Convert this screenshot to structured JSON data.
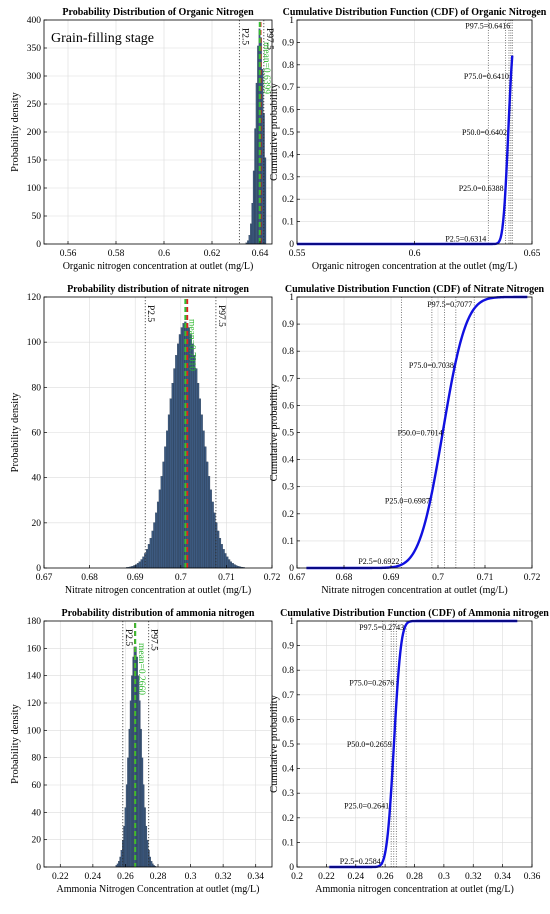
{
  "chart_data": [
    {
      "id": "p1",
      "type": "bar",
      "subtype": "histogram",
      "title": "Probability Distribution of Organic Nitrogen",
      "annotation": "Grain-filling stage",
      "xlabel": "Organic nitrogen concentration at outlet  (mg/L)",
      "ylabel": "Probability density",
      "xlim": [
        0.55,
        0.645
      ],
      "ylim": [
        0,
        400
      ],
      "xticks": [
        0.56,
        0.58,
        0.6,
        0.62,
        0.64
      ],
      "xtick_labels": [
        "0.56",
        "0.58",
        "0.6",
        "0.62",
        "0.64"
      ],
      "yticks": [
        0,
        50,
        100,
        150,
        200,
        250,
        300,
        350,
        400
      ],
      "ytick_labels": [
        "0",
        "50",
        "100",
        "150",
        "200",
        "250",
        "300",
        "350",
        "400"
      ],
      "grid": true,
      "bar_color": "#3d5a80",
      "hist": {
        "mean": 0.6399,
        "sd": 0.0017,
        "peak": 385,
        "bin_width": 0.0006,
        "range": [
          0.6305,
          0.6425
        ]
      },
      "vlines": [
        {
          "label": "P2.5",
          "x": 0.6314,
          "style": "dotted"
        },
        {
          "label": "P97.5",
          "x": 0.6416,
          "style": "dotted"
        }
      ],
      "mean_line": {
        "label": "mean=0.6399",
        "x": 0.6399
      },
      "median_line": {
        "x": 0.6402
      }
    },
    {
      "id": "p2",
      "type": "line",
      "subtype": "cdf",
      "title": "Cumulative Distribution Function (CDF) of Organic Nitrogen",
      "xlabel": "Organic nitrogen concentration at the outlet  (mg/L)",
      "ylabel": "Cumulative probability",
      "xlim": [
        0.55,
        0.65
      ],
      "ylim": [
        0,
        1
      ],
      "xticks": [
        0.55,
        0.6,
        0.65
      ],
      "xtick_labels": [
        "0.55",
        "0.6",
        "0.65"
      ],
      "yticks": [
        0,
        0.1,
        0.2,
        0.3,
        0.4,
        0.5,
        0.6,
        0.7,
        0.8,
        0.9,
        1
      ],
      "ytick_labels": [
        "0",
        "0.1",
        "0.2",
        "0.3",
        "0.4",
        "0.5",
        "0.6",
        "0.7",
        "0.8",
        "0.9",
        "1"
      ],
      "grid": true,
      "line_color": "#1010e0",
      "curve": {
        "mean": 0.6399,
        "sd": 0.0017,
        "range": [
          0.55,
          0.6416
        ]
      },
      "percentiles": [
        {
          "p": 0.025,
          "label": "P2.5=0.6314",
          "x": 0.6314
        },
        {
          "p": 0.25,
          "label": "P25.0=0.6388",
          "x": 0.6388
        },
        {
          "p": 0.5,
          "label": "P50.0=0.6402",
          "x": 0.6402
        },
        {
          "p": 0.75,
          "label": "P75.0=0.6410",
          "x": 0.641
        },
        {
          "p": 0.975,
          "label": "P97.5=0.6416",
          "x": 0.6416
        }
      ]
    },
    {
      "id": "p3",
      "type": "bar",
      "subtype": "histogram",
      "title": "Probability distribution of nitrate nitrogen",
      "xlabel": "Nitrate nitrogen concentration at outlet  (mg/L)",
      "ylabel": "Probability density",
      "xlim": [
        0.67,
        0.72
      ],
      "ylim": [
        0,
        120
      ],
      "xticks": [
        0.67,
        0.68,
        0.69,
        0.7,
        0.71,
        0.72
      ],
      "xtick_labels": [
        "0.67",
        "0.68",
        "0.69",
        "0.7",
        "0.71",
        "0.72"
      ],
      "yticks": [
        0,
        20,
        40,
        60,
        80,
        100,
        120
      ],
      "ytick_labels": [
        "0",
        "20",
        "40",
        "60",
        "80",
        "100",
        "120"
      ],
      "grid": true,
      "bar_color": "#3d5a80",
      "hist": {
        "mean": 0.701,
        "sd": 0.0037,
        "peak": 109,
        "bin_width": 0.0004,
        "range": [
          0.684,
          0.716
        ]
      },
      "vlines": [
        {
          "label": "P2.5",
          "x": 0.6922,
          "style": "dotted"
        },
        {
          "label": "P97.5",
          "x": 0.7077,
          "style": "dotted"
        }
      ],
      "mean_line": {
        "label": "mean=0.7010",
        "x": 0.701
      },
      "median_line": {
        "x": 0.7014
      }
    },
    {
      "id": "p4",
      "type": "line",
      "subtype": "cdf",
      "title": "Cumulative Distribution Function (CDF) of Nitrate Nitrogen",
      "xlabel": "Nitrate nitrogen concentration at outlet  (mg/L)",
      "ylabel": "Cumulative probability",
      "xlim": [
        0.67,
        0.72
      ],
      "ylim": [
        0,
        1
      ],
      "xticks": [
        0.67,
        0.68,
        0.69,
        0.7,
        0.71,
        0.72
      ],
      "xtick_labels": [
        "0.67",
        "0.68",
        "0.69",
        "0.7",
        "0.71",
        "0.72"
      ],
      "yticks": [
        0,
        0.1,
        0.2,
        0.3,
        0.4,
        0.5,
        0.6,
        0.7,
        0.8,
        0.9,
        1
      ],
      "ytick_labels": [
        "0",
        "0.1",
        "0.2",
        "0.3",
        "0.4",
        "0.5",
        "0.6",
        "0.7",
        "0.8",
        "0.9",
        "1"
      ],
      "grid": true,
      "line_color": "#1010e0",
      "curve": {
        "mean": 0.701,
        "sd": 0.0039,
        "range": [
          0.672,
          0.719
        ]
      },
      "percentiles": [
        {
          "p": 0.025,
          "label": "P2.5=0.6922",
          "x": 0.6922
        },
        {
          "p": 0.25,
          "label": "P25.0=0.6987",
          "x": 0.6987
        },
        {
          "p": 0.5,
          "label": "P50.0=0.7014",
          "x": 0.7014
        },
        {
          "p": 0.75,
          "label": "P75.0=0.7038",
          "x": 0.7038
        },
        {
          "p": 0.975,
          "label": "P97.5=0.7077",
          "x": 0.7077
        }
      ]
    },
    {
      "id": "p5",
      "type": "bar",
      "subtype": "histogram",
      "title": "Probability distribution of ammonia nitrogen",
      "xlabel": "Ammonia Nitrogen Concentration at outlet  (mg/L)",
      "ylabel": "Probability density",
      "xlim": [
        0.21,
        0.35
      ],
      "ylim": [
        0,
        180
      ],
      "xticks": [
        0.22,
        0.24,
        0.26,
        0.28,
        0.3,
        0.32,
        0.34
      ],
      "xtick_labels": [
        "0.22",
        "0.24",
        "0.26",
        "0.28",
        "0.3",
        "0.32",
        "0.34"
      ],
      "yticks": [
        0,
        20,
        40,
        60,
        80,
        100,
        120,
        140,
        160,
        180
      ],
      "ytick_labels": [
        "0",
        "20",
        "40",
        "60",
        "80",
        "100",
        "120",
        "140",
        "160",
        "180"
      ],
      "grid": true,
      "bar_color": "#3d5a80",
      "hist": {
        "mean": 0.266,
        "sd": 0.0037,
        "peak": 162,
        "bin_width": 0.0008,
        "range": [
          0.254,
          0.279
        ]
      },
      "vlines": [
        {
          "label": "P2.5",
          "x": 0.2584,
          "style": "dotted"
        },
        {
          "label": "P97.5",
          "x": 0.2743,
          "style": "dotted"
        }
      ],
      "mean_line": {
        "label": "mean=0.2660",
        "x": 0.266
      },
      "median_line": {
        "x": 0.2659
      }
    },
    {
      "id": "p6",
      "type": "line",
      "subtype": "cdf",
      "title": "Cumulative Distribution Function (CDF) of Ammonia nitrogen",
      "xlabel": "Ammonia nitrogen concentration at outlet  (mg/L)",
      "ylabel": "Cumulative probability",
      "xlim": [
        0.2,
        0.36
      ],
      "ylim": [
        0,
        1
      ],
      "xticks": [
        0.2,
        0.22,
        0.24,
        0.26,
        0.28,
        0.3,
        0.32,
        0.34,
        0.36
      ],
      "xtick_labels": [
        "0.2",
        "0.22",
        "0.24",
        "0.26",
        "0.28",
        "0.3",
        "0.32",
        "0.34",
        "0.36"
      ],
      "yticks": [
        0,
        0.1,
        0.2,
        0.3,
        0.4,
        0.5,
        0.6,
        0.7,
        0.8,
        0.9,
        1
      ],
      "ytick_labels": [
        "0",
        "0.1",
        "0.2",
        "0.3",
        "0.4",
        "0.5",
        "0.6",
        "0.7",
        "0.8",
        "0.9",
        "1"
      ],
      "grid": true,
      "line_color": "#1010e0",
      "curve": {
        "mean": 0.266,
        "sd": 0.0038,
        "range": [
          0.222,
          0.35
        ]
      },
      "percentiles": [
        {
          "p": 0.025,
          "label": "P2.5=0.2584",
          "x": 0.2584
        },
        {
          "p": 0.25,
          "label": "P25.0=0.2641",
          "x": 0.2641
        },
        {
          "p": 0.5,
          "label": "P50.0=0.2659",
          "x": 0.2659
        },
        {
          "p": 0.75,
          "label": "P75.0=0.2676",
          "x": 0.2676
        },
        {
          "p": 0.975,
          "label": "P97.5=0.2743",
          "x": 0.2743
        }
      ]
    }
  ]
}
